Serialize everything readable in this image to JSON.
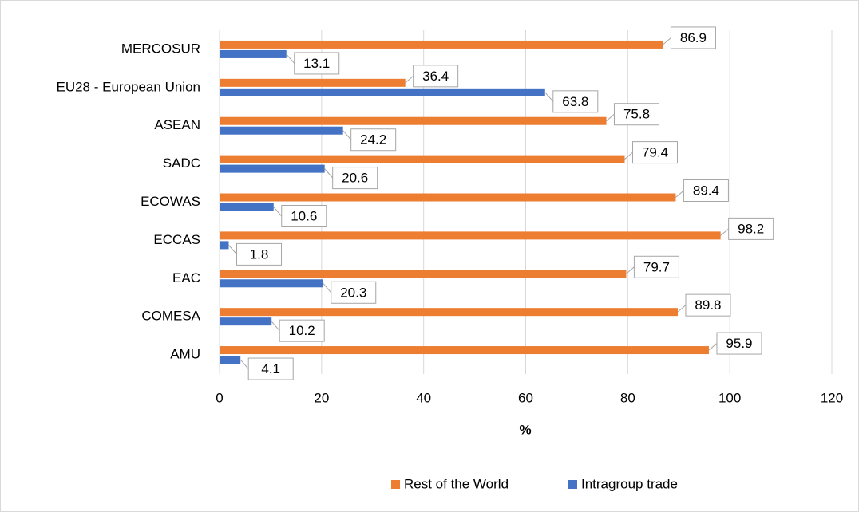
{
  "chart_data": {
    "type": "bar",
    "orientation": "horizontal",
    "categories": [
      "MERCOSUR",
      "EU28 - European Union",
      "ASEAN",
      "SADC",
      "ECOWAS",
      "ECCAS",
      "EAC",
      "COMESA",
      "AMU"
    ],
    "series": [
      {
        "name": "Rest of the World",
        "color": "#ed7d31",
        "values": [
          86.9,
          36.4,
          75.8,
          79.4,
          89.4,
          98.2,
          79.7,
          89.8,
          95.9
        ]
      },
      {
        "name": "Intragroup trade",
        "color": "#4472c4",
        "values": [
          13.1,
          63.8,
          24.2,
          20.6,
          10.6,
          1.8,
          20.3,
          10.2,
          4.1
        ]
      }
    ],
    "x_label": "%",
    "xlim": [
      0,
      120
    ],
    "xticks": [
      0,
      20,
      40,
      60,
      80,
      100,
      120
    ],
    "grid": true,
    "legend": "bottom"
  }
}
